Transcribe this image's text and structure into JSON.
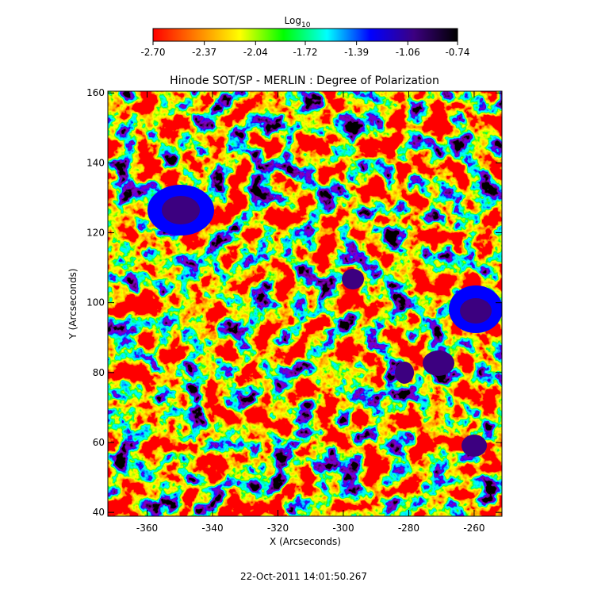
{
  "chart_data": {
    "type": "heatmap",
    "title": "Hinode SOT/SP - MERLIN : Degree of Polarization",
    "x_label": "X (Arcseconds)",
    "y_label": "Y (Arcseconds)",
    "footer": "22-Oct-2011 14:01:50.267",
    "xlim": [
      -372,
      -251.5
    ],
    "xticks": [
      -360,
      -340,
      -320,
      -300,
      -280,
      -260
    ],
    "ylim": [
      38.9,
      160.5
    ],
    "yticks": [
      40,
      60,
      80,
      100,
      120,
      140,
      160
    ],
    "colorbar": {
      "title": "Log",
      "title_sub": "10",
      "lim": [
        -2.7,
        -0.74
      ],
      "ticks": [
        {
          "value": -2.7,
          "label": "-2.70"
        },
        -2.37,
        -2.04,
        -1.72,
        -1.39,
        -1.06,
        -0.74
      ],
      "colormap": [
        "#ff0000",
        "#ff8000",
        "#ffff00",
        "#00ff00",
        "#00ffff",
        "#0000ff",
        "#3c0080",
        "#000000"
      ]
    }
  }
}
